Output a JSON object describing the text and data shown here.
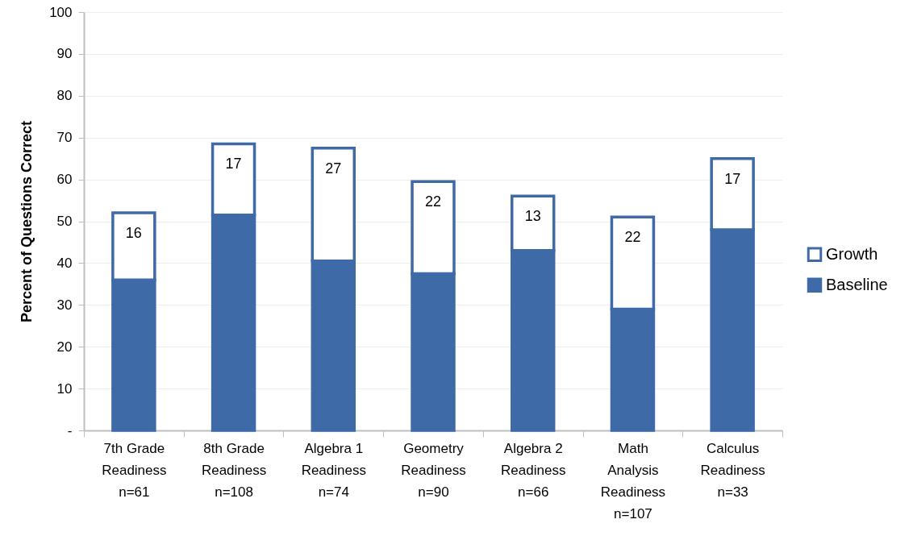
{
  "chart_data": {
    "type": "bar",
    "stacked": true,
    "ylabel": "Percent of Questions Correct",
    "categories": [
      "7th Grade\nReadiness\nn=61",
      "8th Grade\nReadiness\nn=108",
      "Algebra 1\nReadiness\nn=74",
      "Geometry\nReadiness\nn=90",
      "Algebra 2\nReadiness\nn=66",
      "Math\nAnalysis\nReadiness\nn=107",
      "Calculus\nReadiness\nn=33"
    ],
    "series": [
      {
        "name": "Baseline",
        "color": "#3e6aa8",
        "values": [
          36,
          51.5,
          40.5,
          37.5,
          43,
          29,
          48
        ]
      },
      {
        "name": "Growth",
        "color": "#ffffff",
        "values": [
          16,
          17,
          27,
          22,
          13,
          22,
          17
        ],
        "value_labels": [
          "16",
          "17",
          "27",
          "22",
          "13",
          "22",
          "17"
        ]
      }
    ],
    "ylim": [
      0,
      100
    ],
    "yticks": [
      {
        "value": 0,
        "label": "-"
      },
      10,
      20,
      30,
      40,
      50,
      60,
      70,
      80,
      90,
      100
    ],
    "grid": "y",
    "legend": "right"
  }
}
